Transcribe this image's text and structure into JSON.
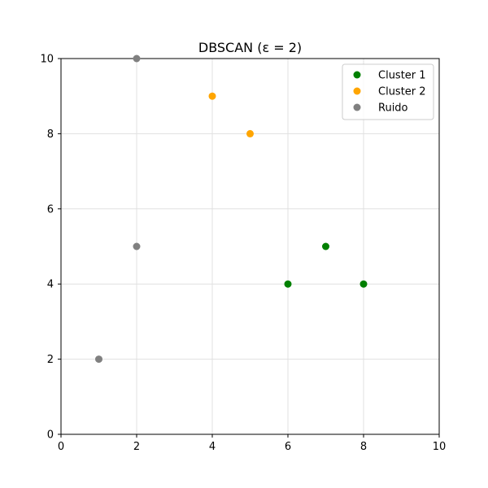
{
  "chart_data": {
    "type": "scatter",
    "title": "DBSCAN (ε = 2)",
    "xlabel": "",
    "ylabel": "",
    "xlim": [
      0,
      10
    ],
    "ylim": [
      0,
      10
    ],
    "xticks": [
      "0",
      "2",
      "4",
      "6",
      "8",
      "10"
    ],
    "yticks": [
      "0",
      "2",
      "4",
      "6",
      "8",
      "10"
    ],
    "grid": true,
    "legend_position": "top-right",
    "series": [
      {
        "name": "Cluster 1",
        "color": "#008000",
        "points": [
          [
            6,
            4
          ],
          [
            7,
            5
          ],
          [
            8,
            4
          ]
        ]
      },
      {
        "name": "Cluster 2",
        "color": "#ffa500",
        "points": [
          [
            4,
            9
          ],
          [
            5,
            8
          ]
        ]
      },
      {
        "name": "Ruido",
        "color": "#808080",
        "points": [
          [
            1,
            2
          ],
          [
            2,
            5
          ],
          [
            2,
            10
          ]
        ]
      }
    ]
  }
}
